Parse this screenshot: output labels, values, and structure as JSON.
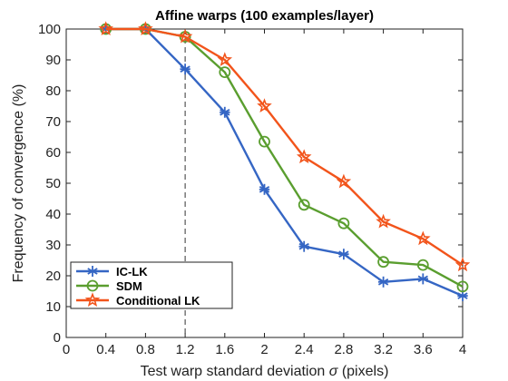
{
  "chart_data": {
    "type": "line",
    "title": "Affine warps (100 examples/layer)",
    "xlabel_prefix": "Test warp standard deviation",
    "xlabel_sigma": "σ",
    "xlabel_suffix": "(pixels)",
    "ylabel": "Frequency of convergence (%)",
    "x": [
      0.4,
      0.8,
      1.2,
      1.6,
      2,
      2.4,
      2.8,
      3.2,
      3.6,
      4
    ],
    "xlim": [
      0,
      4
    ],
    "ylim": [
      0,
      100
    ],
    "xticks": [
      "0",
      "0.4",
      "0.8",
      "1.2",
      "1.6",
      "2",
      "2.4",
      "2.8",
      "3.2",
      "3.6",
      "4"
    ],
    "xtick_values": [
      0,
      0.4,
      0.8,
      1.2,
      1.6,
      2,
      2.4,
      2.8,
      3.2,
      3.6,
      4
    ],
    "yticks": [
      "0",
      "10",
      "20",
      "30",
      "40",
      "50",
      "60",
      "70",
      "80",
      "90",
      "100"
    ],
    "ytick_values": [
      0,
      10,
      20,
      30,
      40,
      50,
      60,
      70,
      80,
      90,
      100
    ],
    "vline_x": 1.2,
    "legend_position": "bottom-left",
    "grid": false,
    "series": [
      {
        "name": "IC-LK",
        "color": "#3566c4",
        "marker": "asterisk",
        "values": [
          100,
          100,
          87,
          73,
          48,
          29.5,
          27,
          18,
          19,
          13.5
        ]
      },
      {
        "name": "SDM",
        "color": "#5a9e2f",
        "marker": "circle",
        "values": [
          100,
          100,
          97.5,
          86,
          63.5,
          43,
          37,
          24.5,
          23.5,
          16.5
        ]
      },
      {
        "name": "Conditional LK",
        "color": "#f2541b",
        "marker": "star",
        "values": [
          100,
          100,
          97.5,
          90,
          75,
          58.5,
          50.5,
          37.5,
          32,
          23.5
        ]
      }
    ]
  }
}
